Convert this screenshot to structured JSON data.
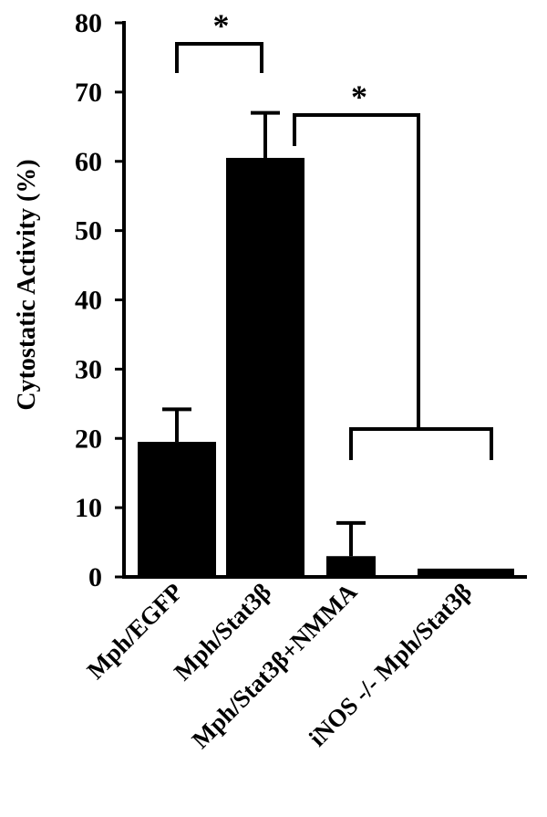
{
  "chart_data": {
    "type": "bar",
    "title": "",
    "xlabel": "",
    "ylabel": "Cytostatic Activity (%)",
    "ylim": [
      0,
      80
    ],
    "yticks": [
      "0",
      "10",
      "20",
      "30",
      "40",
      "50",
      "60",
      "70",
      "80"
    ],
    "grid": false,
    "categories": [
      "Mph/EGFP",
      "Mph/Stat3β",
      "Mph/Stat3β+NMMA",
      "iNOS -/- Mph/Stat3β"
    ],
    "values": [
      19.5,
      60.5,
      3,
      1.2
    ],
    "error_upper": [
      24.2,
      67,
      7.8,
      1.2
    ],
    "bar_color": "#000000",
    "significance": [
      {
        "label": "*",
        "from": [
          "Mph/EGFP"
        ],
        "to": [
          "Mph/Stat3β"
        ]
      },
      {
        "label": "*",
        "from": [
          "Mph/Stat3β"
        ],
        "to": [
          "Mph/Stat3β+NMMA",
          "iNOS -/- Mph/Stat3β"
        ]
      }
    ]
  }
}
